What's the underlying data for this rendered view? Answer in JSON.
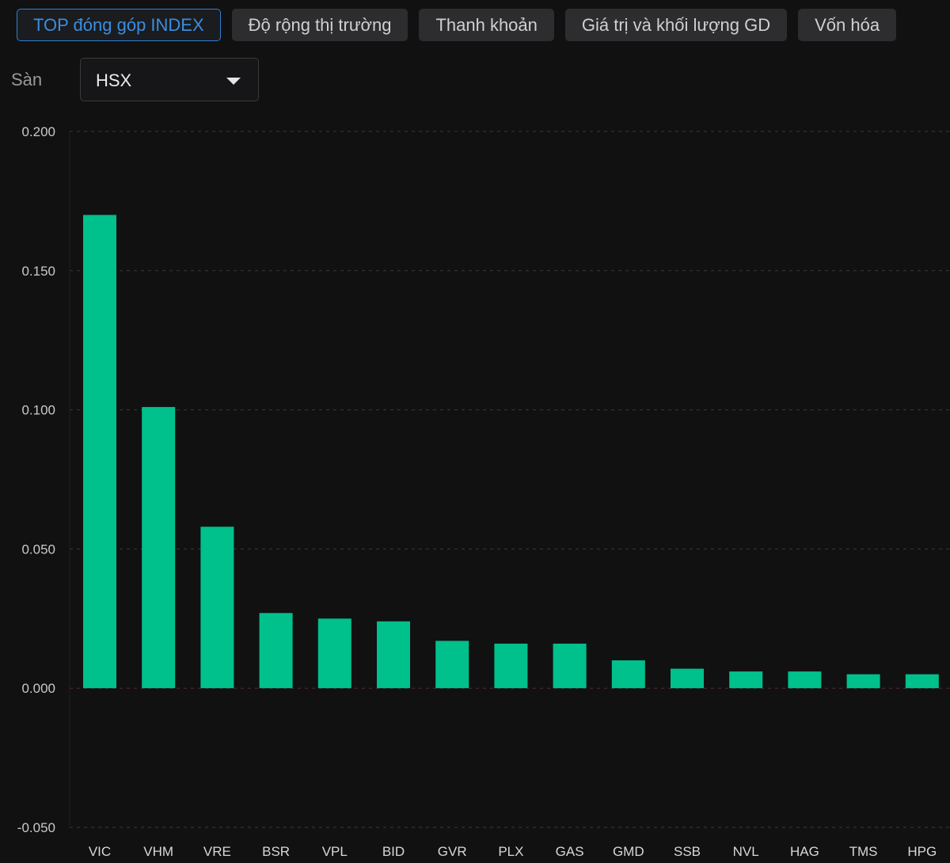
{
  "tabs": [
    {
      "label": "TOP đóng góp INDEX",
      "active": true
    },
    {
      "label": "Độ rộng thị trường",
      "active": false
    },
    {
      "label": "Thanh khoản",
      "active": false
    },
    {
      "label": "Giá trị và khối lượng GD",
      "active": false
    },
    {
      "label": "Vốn hóa",
      "active": false
    }
  ],
  "filter": {
    "label": "Sàn",
    "selected": "HSX",
    "icon": "caret-down-icon"
  },
  "colors": {
    "background": "#111112",
    "bar": "#00c08b",
    "grid": "#3a3a3a",
    "zero_line": "#5a2a2a",
    "active_tab": "#2f7fd1"
  },
  "chart_data": {
    "type": "bar",
    "categories": [
      "VIC",
      "VHM",
      "VRE",
      "BSR",
      "VPL",
      "BID",
      "GVR",
      "PLX",
      "GAS",
      "GMD",
      "SSB",
      "NVL",
      "HAG",
      "TMS",
      "HPG"
    ],
    "values": [
      0.17,
      0.101,
      0.058,
      0.027,
      0.025,
      0.024,
      0.017,
      0.016,
      0.016,
      0.01,
      0.007,
      0.006,
      0.006,
      0.005,
      0.005
    ],
    "ylim": [
      -0.05,
      0.2
    ],
    "yticks": [
      "0.200",
      "0.150",
      "0.100",
      "0.050",
      "0.000",
      "-0.050"
    ],
    "ytick_values": [
      0.2,
      0.15,
      0.1,
      0.05,
      0.0,
      -0.05
    ],
    "grid": true,
    "title": "",
    "xlabel": "",
    "ylabel": ""
  }
}
